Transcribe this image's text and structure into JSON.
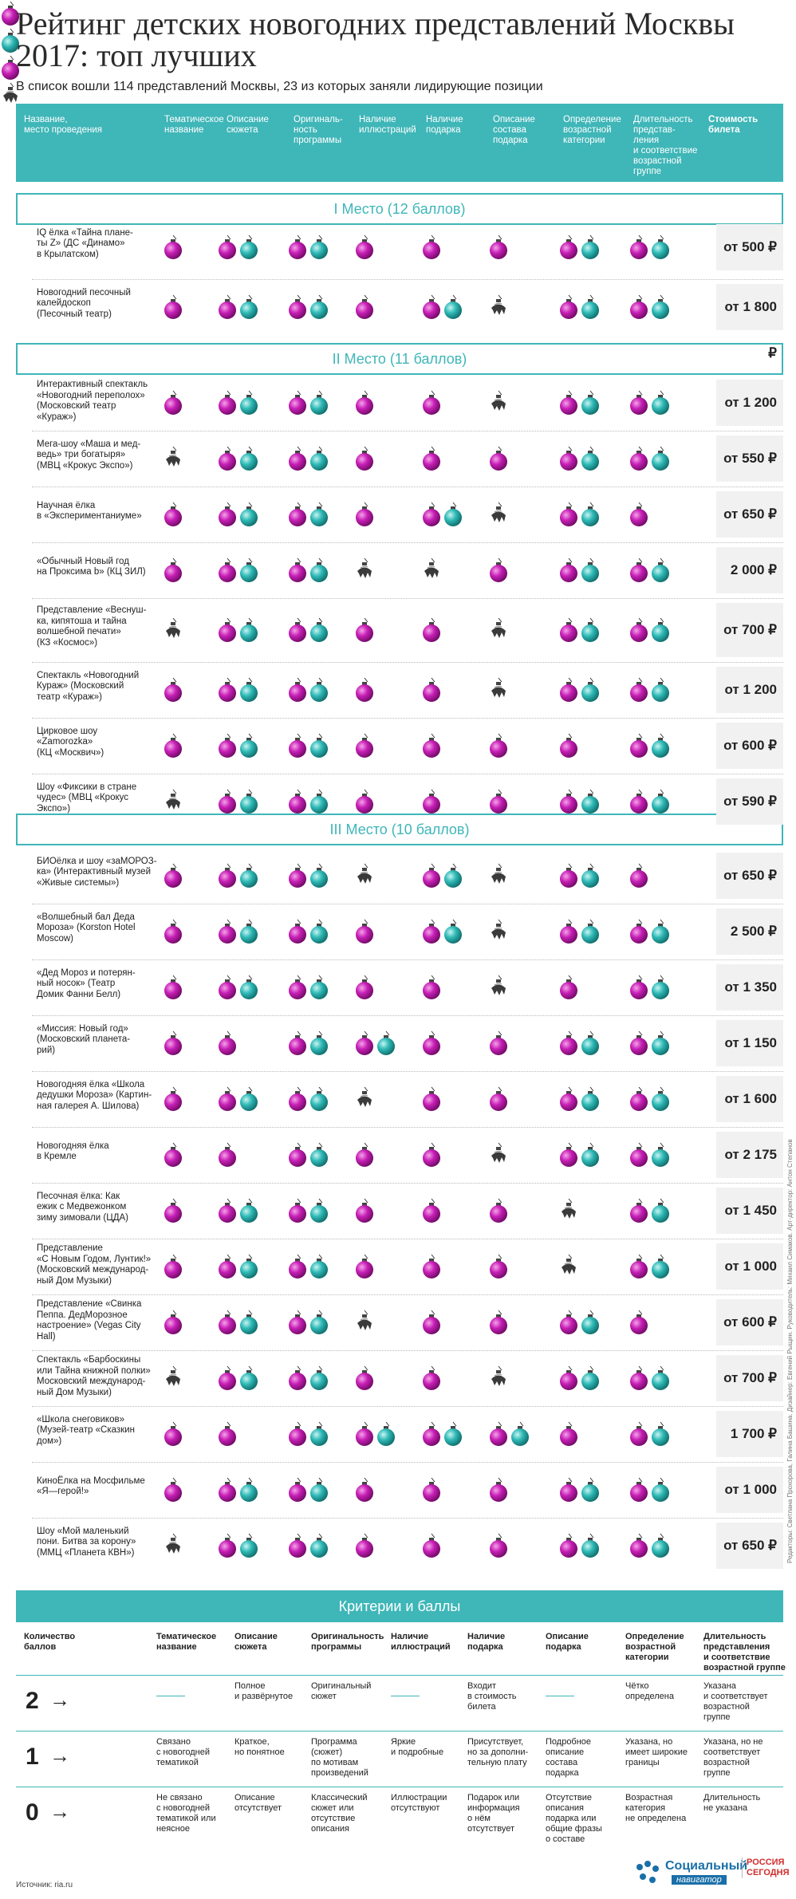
{
  "title": "Рейтинг детских новогодних представлений Москвы 2017: топ лучших",
  "subtitle": "В список вошли 114 представлений Москвы, 23 из которых заняли лидирующие позиции",
  "headers": [
    "Название,\nместо проведения",
    "Тематическое\nназвание",
    "Описание\nсюжета",
    "Оригиналь-\nность\nпрограммы",
    "Наличие\nиллюстраций",
    "Наличие\nподарка",
    "Описание\nсостава\nподарка",
    "Определение\nвозрастной\nкатегории",
    "Длительность\nпредстав-\nления\nи соответствие\nвозрастной\nгруппе",
    "Стоимость\nбилета"
  ],
  "places": [
    {
      "label": "I Место (12 баллов)"
    },
    {
      "label": "II Место (11 баллов)"
    },
    {
      "label": "III Место (10 баллов)"
    }
  ],
  "rows": [
    {
      "name": "IQ ёлка «Тайна плане-\nты Z» (ДС «Динамо»\nв Крылатском)",
      "price": "от 500 ₽",
      "scores": [
        1,
        2,
        2,
        1,
        1,
        1,
        2,
        2
      ]
    },
    {
      "name": "Новогодний песочный\nкалейдоскоп\n(Песочный театр)",
      "price": "от 1 800 ₽",
      "scores": [
        1,
        2,
        2,
        1,
        2,
        0,
        2,
        2
      ]
    },
    {
      "name": "Интерактивный спектакль\n«Новогодний переполох»\n(Московский театр\n«Кураж»)",
      "price": "от 1 200 ₽",
      "scores": [
        1,
        2,
        2,
        1,
        1,
        0,
        2,
        2
      ]
    },
    {
      "name": "Мега-шоу «Маша и мед-\nведь» три богатыря»\n(МВЦ «Крокус Экспо»)",
      "price": "от 550 ₽",
      "scores": [
        0,
        2,
        2,
        1,
        1,
        1,
        2,
        2
      ]
    },
    {
      "name": "Научная ёлка\nв «Экспериментаниуме»",
      "price": "от 650 ₽",
      "scores": [
        1,
        2,
        2,
        1,
        2,
        0,
        2,
        1
      ]
    },
    {
      "name": "«Обычный Новый год\nна Проксима b» (КЦ ЗИЛ)",
      "price": "2 000 ₽",
      "scores": [
        1,
        2,
        2,
        0,
        0,
        1,
        2,
        2
      ]
    },
    {
      "name": "Представление «Веснуш-\nка, кипятоша и тайна\nволшебной печати»\n(КЗ «Космос»)",
      "price": "от 700 ₽",
      "scores": [
        0,
        2,
        2,
        1,
        1,
        0,
        2,
        2
      ]
    },
    {
      "name": "Спектакль «Новогодний\nКураж» (Московский\nтеатр «Кураж»)",
      "price": "от 1 200 ₽",
      "scores": [
        1,
        2,
        2,
        1,
        1,
        0,
        2,
        2
      ]
    },
    {
      "name": "Цирковое шоу\n«Zamorozka»\n(КЦ «Москвич»)",
      "price": "от 600 ₽",
      "scores": [
        1,
        2,
        2,
        1,
        1,
        1,
        1,
        2
      ]
    },
    {
      "name": "Шоу «Фиксики в стране\nчудес» (МВЦ «Крокус\nЭкспо»)",
      "price": "от 590 ₽",
      "scores": [
        0,
        2,
        2,
        1,
        1,
        1,
        2,
        2
      ]
    },
    {
      "name": "БИОёлка и шоу «заМОРОЗ-\nка» (Интерактивный музей\n«Живые системы»)",
      "price": "от 650 ₽",
      "scores": [
        1,
        2,
        2,
        0,
        2,
        0,
        2,
        1
      ]
    },
    {
      "name": "«Волшебный бал Деда\nМороза» (Korston Hotel\nMoscow)",
      "price": "2 500 ₽",
      "scores": [
        1,
        2,
        2,
        1,
        2,
        0,
        2,
        2
      ]
    },
    {
      "name": "«Дед Мороз и потерян-\nный носок» (Театр\nДомик Фанни Белл)",
      "price": "от 1 350 ₽",
      "scores": [
        1,
        2,
        2,
        1,
        1,
        0,
        1,
        2
      ]
    },
    {
      "name": "«Миссия: Новый год»\n(Московский планета-\nрий)",
      "price": "от 1 150 ₽",
      "scores": [
        1,
        1,
        2,
        2,
        1,
        1,
        2,
        2
      ]
    },
    {
      "name": "Новогодняя ёлка «Школа\nдедушки Мороза» (Картин-\nная галерея А. Шилова)",
      "price": "от 1 600 ₽",
      "scores": [
        1,
        2,
        2,
        0,
        1,
        1,
        2,
        2
      ]
    },
    {
      "name": "Новогодняя ёлка\nв Кремле",
      "price": "от 2 175 ₽",
      "scores": [
        1,
        1,
        2,
        1,
        1,
        0,
        2,
        2
      ]
    },
    {
      "name": "Песочная ёлка: Как\nежик с Медвежонком\nзиму зимовали (ЦДА)",
      "price": "от 1 450 ₽",
      "scores": [
        1,
        2,
        2,
        1,
        1,
        1,
        0,
        2
      ]
    },
    {
      "name": "Представление\n«С Новым Годом, Лунтик!»\n(Московский международ-\nный Дом Музыки)",
      "price": "от 1 000 ₽",
      "scores": [
        1,
        2,
        2,
        1,
        1,
        1,
        0,
        2
      ]
    },
    {
      "name": "Представление «Свинка\nПеппа. ДедМорозное\nнастроение» (Vegas City\nHall)",
      "price": "от 600 ₽",
      "scores": [
        1,
        2,
        2,
        0,
        1,
        1,
        2,
        1
      ]
    },
    {
      "name": "Спектакль «Барбоскины\nили Тайна книжной полки»\nМосковский международ-\nный Дом Музыки)",
      "price": "от 700 ₽",
      "scores": [
        0,
        2,
        2,
        1,
        1,
        0,
        2,
        2
      ]
    },
    {
      "name": "«Школа снеговиков»\n(Музей-театр «Сказкин\nдом»)",
      "price": "1 700 ₽",
      "scores": [
        1,
        1,
        2,
        2,
        2,
        2,
        1,
        2
      ]
    },
    {
      "name": "КиноЁлка на Мосфильме\n«Я—герой!»",
      "price": "от 1 000 ₽",
      "scores": [
        1,
        2,
        2,
        1,
        1,
        1,
        2,
        2
      ]
    },
    {
      "name": "Шоу «Мой маленький\nпони. Битва за корону»\n(ММЦ «Планета КВН»)",
      "price": "от 650 ₽",
      "scores": [
        0,
        2,
        2,
        1,
        1,
        1,
        2,
        2
      ]
    }
  ],
  "criteria": {
    "title": "Критерии и баллы",
    "headers": [
      "Количество\nбаллов",
      "Тематическое\nназвание",
      "Описание\nсюжета",
      "Оригинальность\nпрограммы",
      "Наличие\nиллюстраций",
      "Наличие\nподарка",
      "Описание\nподарка",
      "Определение\nвозрастной\nкатегории",
      "Длительность\nпредставления\nи соответствие\nвозрастной группе"
    ],
    "rows": [
      {
        "score": "2",
        "cells": [
          "—",
          "Полное\nи развёрнутое",
          "Оригинальный\nсюжет",
          "—",
          "Входит\nв стоимость\nбилета",
          "—",
          "Чётко\nопределена",
          "Указана\nи соответствует\nвозрастной\nгруппе"
        ]
      },
      {
        "score": "1",
        "cells": [
          "Связано\nс новогодней\nтематикой",
          "Краткое,\nно понятное",
          "Программа\n(сюжет)\nпо мотивам\nпроизведений",
          "Яркие\nи подробные",
          "Присутствует,\nно за дополни-\nтельную плату",
          "Подробное\nописание\nсостава\nподарка",
          "Указана, но\nимеет широкие\nграницы",
          "Указана, но не\nсоответствует\nвозрастной\nгруппе"
        ]
      },
      {
        "score": "0",
        "cells": [
          "Не связано\nс новогодней\nтематикой или\nнеясное",
          "Описание\nотсутствует",
          "Классический\nсюжет или\nотсутствие\nописания",
          "Иллюстрации\nотсутствуют",
          "Подарок или\nинформация\nо нём\nотсутствует",
          "Отсутствие\nописания\nподарка или\nобщие фразы\nо составе",
          "Возрастная\nкатегория\nне определена",
          "Длительность\nне указана"
        ]
      }
    ]
  },
  "source": "Источник: ria.ru",
  "credits": "Редакторы: Светлана Прохорова, Галина Башина. Дизайнер: Евгений Рыщин. Руководитель: Михаил Симаков. Арт-директор: Антон Степанов",
  "logo": {
    "name": "Социальный",
    "sub": "навигатор",
    "brand": "РОССИЯ\nСЕГОДНЯ"
  },
  "colors": {
    "teal": "#3fb6b8",
    "magenta": "#b0169e",
    "cyan": "#23b2b0",
    "dark": "#333333"
  }
}
